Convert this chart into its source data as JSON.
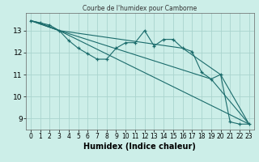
{
  "title": "",
  "xlabel": "Humidex (Indice chaleur)",
  "background_color": "#cceee8",
  "line_color": "#1a6b6b",
  "grid_color": "#aad4ce",
  "xlim": [
    -0.5,
    23.5
  ],
  "ylim": [
    8.5,
    13.8
  ],
  "yticks": [
    9,
    10,
    11,
    12,
    13
  ],
  "xticks": [
    0,
    1,
    2,
    3,
    4,
    5,
    6,
    7,
    8,
    9,
    10,
    11,
    12,
    13,
    14,
    15,
    16,
    17,
    18,
    19,
    20,
    21,
    22,
    23
  ],
  "line1_x": [
    0,
    1,
    2,
    3,
    4,
    5,
    6,
    7,
    8,
    9,
    10,
    11,
    12,
    13,
    14,
    15,
    16,
    17,
    18,
    19,
    20,
    21,
    22,
    23
  ],
  "line1_y": [
    13.45,
    13.35,
    13.25,
    13.0,
    12.55,
    12.2,
    11.95,
    11.7,
    11.7,
    12.2,
    12.45,
    12.45,
    13.0,
    12.3,
    12.6,
    12.6,
    12.2,
    12.05,
    11.1,
    10.8,
    11.0,
    8.85,
    8.75,
    8.75
  ],
  "line2_x": [
    0,
    1,
    3,
    23
  ],
  "line2_y": [
    13.45,
    13.35,
    13.0,
    8.75
  ],
  "line3_x": [
    0,
    3,
    16,
    20,
    23
  ],
  "line3_y": [
    13.45,
    13.0,
    12.2,
    11.0,
    8.75
  ],
  "line4_x": [
    0,
    3,
    19,
    23
  ],
  "line4_y": [
    13.45,
    13.0,
    10.8,
    8.75
  ],
  "title_text": "Courbe de l'humidex pour Camborne"
}
